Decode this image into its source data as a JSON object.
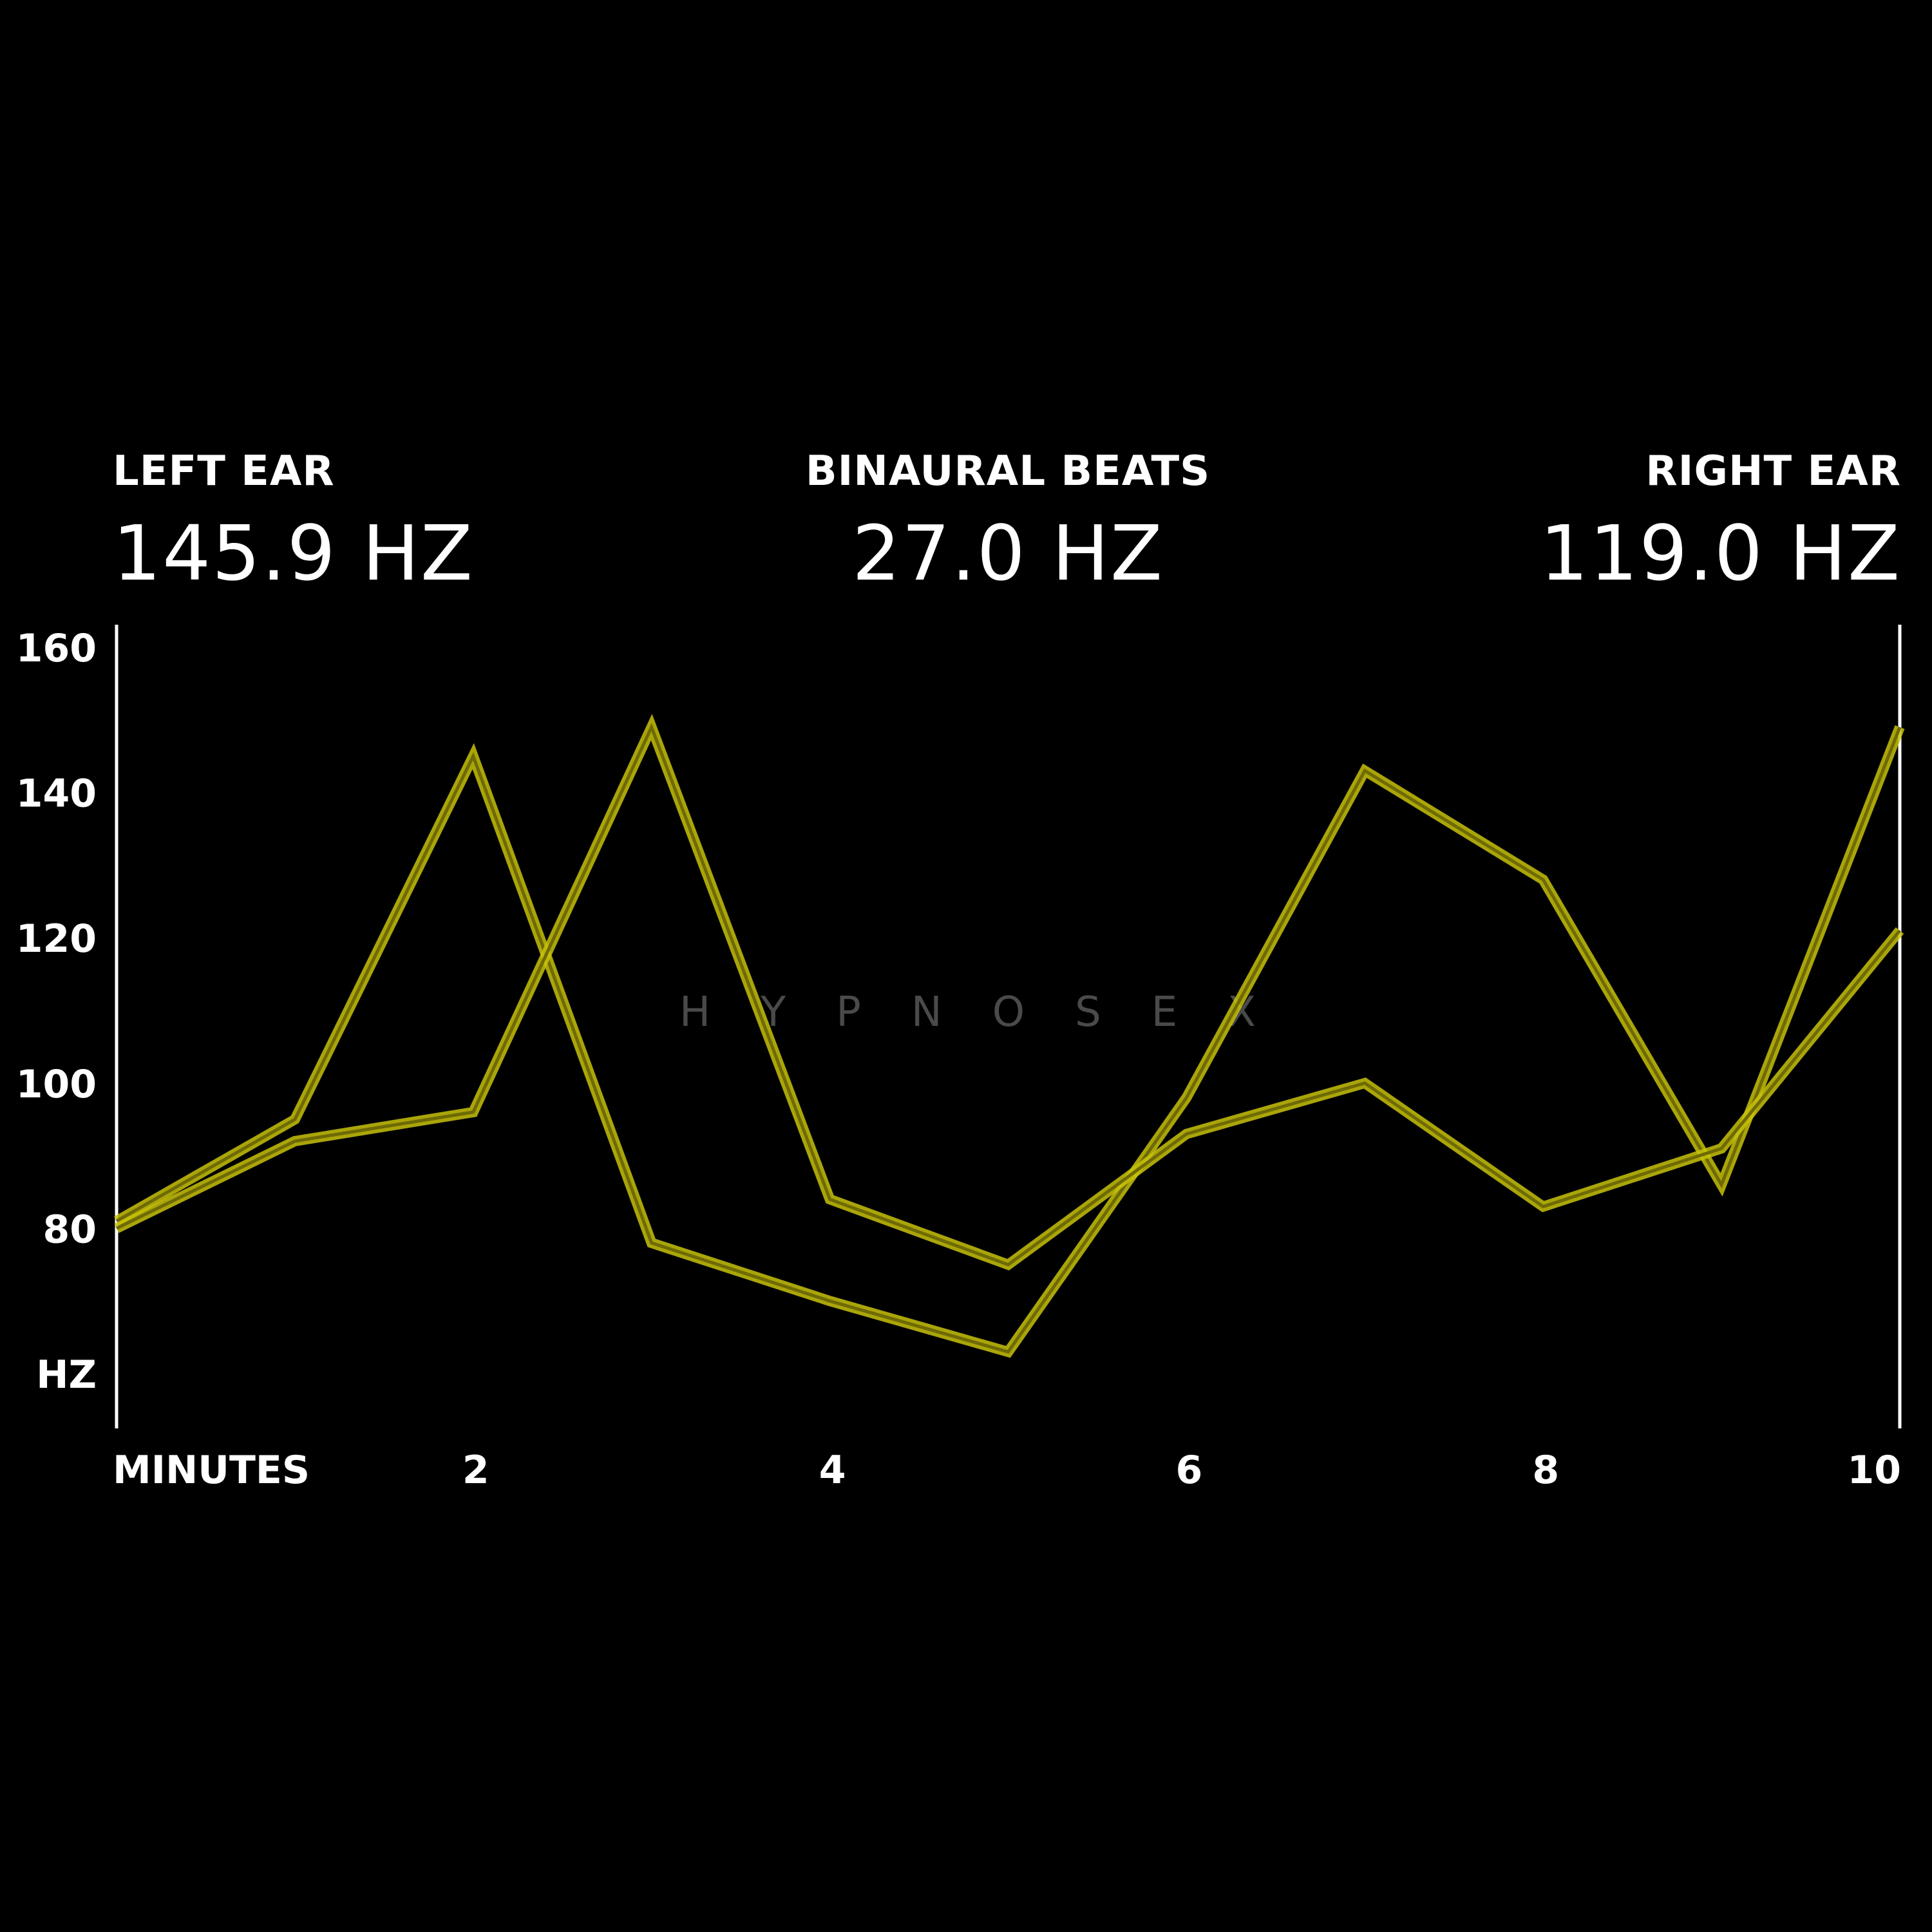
{
  "header": {
    "left_label": "LEFT EAR",
    "left_value": "145.9 HZ",
    "center_label": "BINAURAL BEATS",
    "center_value": "27.0 HZ",
    "right_label": "RIGHT EAR",
    "right_value": "119.0 HZ"
  },
  "watermark": "HYPNOSEX",
  "colors": {
    "background": "#000000",
    "line": "#c8c20a",
    "text": "#ffffff"
  },
  "chart_data": {
    "type": "line",
    "xlabel": "MINUTES",
    "ylabel": "HZ",
    "xlim": [
      0,
      10
    ],
    "ylim": [
      60,
      160
    ],
    "x_ticks": [
      2,
      4,
      6,
      8,
      10
    ],
    "x_tick_labels": [
      "2",
      "4",
      "6",
      "8",
      "10"
    ],
    "y_ticks": [
      80,
      100,
      120,
      140,
      160
    ],
    "y_tick_labels": [
      "80",
      "100",
      "120",
      "140",
      "160"
    ],
    "x": [
      0,
      1,
      2,
      3,
      4,
      5,
      6,
      7,
      8,
      9,
      10
    ],
    "series": [
      {
        "values": [
          81,
          95,
          145,
          78,
          70,
          63,
          98,
          143,
          128,
          86,
          149
        ]
      },
      {
        "values": [
          80,
          92,
          96,
          149,
          84,
          75,
          93,
          100,
          83,
          91,
          121
        ]
      }
    ]
  }
}
